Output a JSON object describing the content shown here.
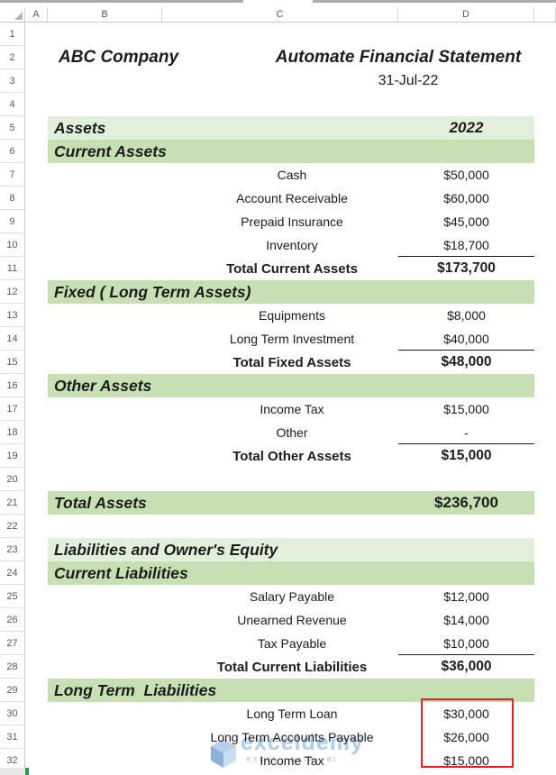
{
  "app": {
    "type": "spreadsheet-financial-statement"
  },
  "grid": {
    "columns": [
      "A",
      "B",
      "C",
      "D"
    ],
    "rows": [
      {
        "n": 1,
        "kind": "blank"
      },
      {
        "n": 2,
        "kind": "heading",
        "b": "ABC Company",
        "cd": "Automate Financial Statement"
      },
      {
        "n": 3,
        "kind": "date",
        "cd": "31-Jul-22"
      },
      {
        "n": 4,
        "kind": "blank"
      },
      {
        "n": 5,
        "kind": "section",
        "b": "Assets",
        "d": "2022"
      },
      {
        "n": 6,
        "kind": "band",
        "b": "Current Assets"
      },
      {
        "n": 7,
        "kind": "item",
        "c": "Cash",
        "d": "$50,000"
      },
      {
        "n": 8,
        "kind": "item",
        "c": "Account Receivable",
        "d": "$60,000"
      },
      {
        "n": 9,
        "kind": "item",
        "c": "Prepaid Insurance",
        "d": "$45,000"
      },
      {
        "n": 10,
        "kind": "item",
        "c": "Inventory",
        "d": "$18,700",
        "u": true
      },
      {
        "n": 11,
        "kind": "total",
        "c": "Total Current Assets",
        "d": "$173,700"
      },
      {
        "n": 12,
        "kind": "band",
        "b": "Fixed ( Long Term Assets)"
      },
      {
        "n": 13,
        "kind": "item",
        "c": "Equipments",
        "d": "$8,000"
      },
      {
        "n": 14,
        "kind": "item",
        "c": "Long Term Investment",
        "d": "$40,000",
        "u": true
      },
      {
        "n": 15,
        "kind": "total",
        "c": "Total Fixed Assets",
        "d": "$48,000"
      },
      {
        "n": 16,
        "kind": "band",
        "b": "Other Assets"
      },
      {
        "n": 17,
        "kind": "item",
        "c": "Income Tax",
        "d": "$15,000"
      },
      {
        "n": 18,
        "kind": "item",
        "c": "Other",
        "d": "-",
        "u": true
      },
      {
        "n": 19,
        "kind": "total",
        "c": "Total Other Assets",
        "d": "$15,000"
      },
      {
        "n": 20,
        "kind": "blank"
      },
      {
        "n": 21,
        "kind": "band_total",
        "b": "Total Assets",
        "d": "$236,700"
      },
      {
        "n": 22,
        "kind": "blank"
      },
      {
        "n": 23,
        "kind": "band_light",
        "b": "Liabilities and Owner's Equity"
      },
      {
        "n": 24,
        "kind": "band",
        "b": "Current Liabilities"
      },
      {
        "n": 25,
        "kind": "item",
        "c": "Salary Payable",
        "d": "$12,000"
      },
      {
        "n": 26,
        "kind": "item",
        "c": "Unearned Revenue",
        "d": "$14,000"
      },
      {
        "n": 27,
        "kind": "item",
        "c": "Tax Payable",
        "d": "$10,000",
        "u": true
      },
      {
        "n": 28,
        "kind": "total",
        "c": "Total Current Liabilities",
        "d": "$36,000"
      },
      {
        "n": 29,
        "kind": "band",
        "b": "Long Term  Liabilities"
      },
      {
        "n": 30,
        "kind": "item",
        "c": "Long Term Loan",
        "d": "$30,000"
      },
      {
        "n": 31,
        "kind": "item",
        "c": "Long Term Accounts Payable",
        "d": "$26,000"
      },
      {
        "n": 32,
        "kind": "item",
        "c": "Income Tax",
        "d": "$15,000"
      }
    ]
  },
  "watermark": {
    "name": "exceldemy",
    "tagline": "EXCEL · DATA · BI",
    "color": "#9DC3E6"
  },
  "annotation": {
    "shape": "red-box",
    "color": "#EC2025",
    "highlights": "D30:D32"
  },
  "colors": {
    "section_light": "#E2EFDA",
    "section_medium": "#C6E0B4",
    "underline": "#1A1A1A",
    "header_text": "#595959",
    "corner_accent_green": "#269B48"
  }
}
